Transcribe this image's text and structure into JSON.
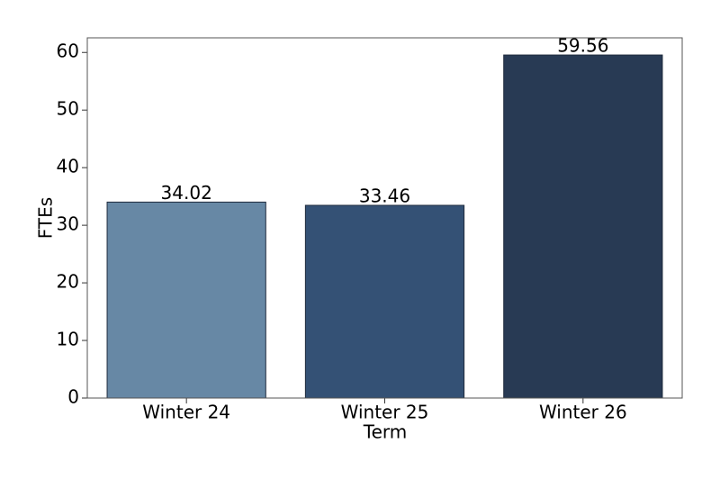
{
  "chart_data": {
    "type": "bar",
    "categories": [
      "Winter 24",
      "Winter 25",
      "Winter 26"
    ],
    "values": [
      34.02,
      33.46,
      59.56
    ],
    "colors": [
      "#6788a5",
      "#345175",
      "#283a54"
    ],
    "xlabel": "Term",
    "ylabel": "FTEs",
    "ylim": [
      0,
      62.54
    ],
    "yticks": [
      0,
      10,
      20,
      30,
      40,
      50,
      60
    ]
  }
}
